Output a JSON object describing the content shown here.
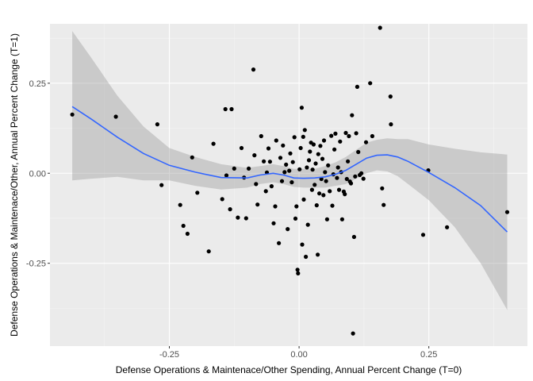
{
  "chart_data": {
    "type": "scatter",
    "title": "",
    "xlabel": "Defense Operations & Maintenace/Other Spending, Annual Percent Change (T=0)",
    "ylabel": "Defense Operations & Maintenace/Other, Annual Percent Change (T=1)",
    "xlim": [
      -0.48,
      0.44
    ],
    "ylim": [
      -0.48,
      0.415
    ],
    "x_ticks": [
      -0.25,
      0.0,
      0.25
    ],
    "x_tick_labels": [
      "-0.25",
      "0.00",
      "0.25"
    ],
    "y_ticks": [
      -0.25,
      0.0,
      0.25
    ],
    "y_tick_labels": [
      "-0.25",
      "0.00",
      "0.25"
    ],
    "grid": true,
    "colors": {
      "panel": "#ebebeb",
      "grid_major": "#ffffff",
      "grid_minor": "#f5f5f5",
      "points": "#000000",
      "smooth_line": "#3366ff",
      "ribbon": "#999999"
    },
    "points": [
      [
        -0.437,
        0.163
      ],
      [
        -0.353,
        0.157
      ],
      [
        -0.273,
        0.136
      ],
      [
        -0.265,
        -0.033
      ],
      [
        -0.229,
        -0.088
      ],
      [
        -0.223,
        -0.146
      ],
      [
        -0.215,
        -0.168
      ],
      [
        -0.206,
        0.044
      ],
      [
        -0.196,
        -0.054
      ],
      [
        -0.174,
        -0.217
      ],
      [
        -0.165,
        0.082
      ],
      [
        -0.148,
        -0.072
      ],
      [
        -0.142,
        0.178
      ],
      [
        -0.14,
        -0.006
      ],
      [
        -0.133,
        -0.1
      ],
      [
        -0.13,
        0.178
      ],
      [
        -0.125,
        0.013
      ],
      [
        -0.118,
        -0.123
      ],
      [
        -0.111,
        0.07
      ],
      [
        -0.106,
        -0.012
      ],
      [
        -0.102,
        -0.125
      ],
      [
        -0.097,
        0.013
      ],
      [
        -0.088,
        0.288
      ],
      [
        -0.086,
        0.05
      ],
      [
        -0.083,
        -0.03
      ],
      [
        -0.08,
        -0.087
      ],
      [
        -0.073,
        0.103
      ],
      [
        -0.068,
        0.033
      ],
      [
        -0.064,
        -0.05
      ],
      [
        -0.062,
        0.002
      ],
      [
        -0.059,
        0.069
      ],
      [
        -0.056,
        0.032
      ],
      [
        -0.053,
        -0.036
      ],
      [
        -0.049,
        -0.139
      ],
      [
        -0.046,
        -0.092
      ],
      [
        -0.044,
        0.091
      ],
      [
        -0.039,
        -0.194
      ],
      [
        -0.036,
        0.043
      ],
      [
        -0.033,
        -0.022
      ],
      [
        -0.031,
        0.077
      ],
      [
        -0.028,
        0.003
      ],
      [
        -0.025,
        0.024
      ],
      [
        -0.022,
        -0.155
      ],
      [
        -0.019,
        0.007
      ],
      [
        -0.017,
        0.055
      ],
      [
        -0.014,
        -0.025
      ],
      [
        -0.012,
        0.031
      ],
      [
        -0.009,
        0.1
      ],
      [
        -0.007,
        -0.126
      ],
      [
        -0.005,
        -0.092
      ],
      [
        -0.003,
        -0.268
      ],
      [
        -0.002,
        -0.278
      ],
      [
        0.001,
        0.011
      ],
      [
        0.003,
        0.07
      ],
      [
        0.005,
        0.182
      ],
      [
        0.006,
        -0.198
      ],
      [
        0.008,
        0.101
      ],
      [
        0.009,
        -0.073
      ],
      [
        0.011,
        0.12
      ],
      [
        0.013,
        -0.232
      ],
      [
        0.015,
        0.016
      ],
      [
        0.017,
        -0.143
      ],
      [
        0.019,
        0.036
      ],
      [
        0.021,
        0.06
      ],
      [
        0.023,
        0.085
      ],
      [
        0.025,
        -0.046
      ],
      [
        0.026,
        0.01
      ],
      [
        0.028,
        0.08
      ],
      [
        0.03,
        -0.032
      ],
      [
        0.032,
        0.027
      ],
      [
        0.034,
        -0.089
      ],
      [
        0.036,
        -0.226
      ],
      [
        0.037,
        0.053
      ],
      [
        0.039,
        -0.056
      ],
      [
        0.041,
        0.076
      ],
      [
        0.043,
        -0.016
      ],
      [
        0.045,
        0.04
      ],
      [
        0.047,
        -0.061
      ],
      [
        0.048,
        0.091
      ],
      [
        0.05,
        0.003
      ],
      [
        0.052,
        -0.022
      ],
      [
        0.054,
        -0.128
      ],
      [
        0.056,
        0.022
      ],
      [
        0.059,
        -0.05
      ],
      [
        0.062,
        0.104
      ],
      [
        0.064,
        -0.09
      ],
      [
        0.066,
        -0.003
      ],
      [
        0.068,
        0.066
      ],
      [
        0.07,
        0.11
      ],
      [
        0.073,
        -0.013
      ],
      [
        0.075,
        0.016
      ],
      [
        0.077,
        -0.046
      ],
      [
        0.079,
        0.088
      ],
      [
        0.081,
        0.003
      ],
      [
        0.083,
        -0.128
      ],
      [
        0.086,
        -0.051
      ],
      [
        0.088,
        -0.058
      ],
      [
        0.09,
        0.112
      ],
      [
        0.092,
        -0.016
      ],
      [
        0.094,
        0.033
      ],
      [
        0.096,
        0.103
      ],
      [
        0.098,
        -0.023
      ],
      [
        0.1,
        -0.028
      ],
      [
        0.102,
        0.161
      ],
      [
        0.104,
        -0.445
      ],
      [
        0.106,
        -0.177
      ],
      [
        0.108,
        -0.009
      ],
      [
        0.11,
        0.111
      ],
      [
        0.112,
        0.24
      ],
      [
        0.114,
        0.059
      ],
      [
        0.117,
        -0.005
      ],
      [
        0.12,
        0.0
      ],
      [
        0.124,
        -0.015
      ],
      [
        0.129,
        0.086
      ],
      [
        0.137,
        0.25
      ],
      [
        0.141,
        0.103
      ],
      [
        0.156,
        0.404
      ],
      [
        0.16,
        -0.042
      ],
      [
        0.163,
        -0.088
      ],
      [
        0.176,
        0.213
      ],
      [
        0.177,
        0.136
      ],
      [
        0.239,
        -0.171
      ],
      [
        0.249,
        0.008
      ],
      [
        0.285,
        -0.15
      ],
      [
        0.401,
        -0.108
      ]
    ],
    "smooth_line": {
      "x": [
        -0.437,
        -0.4,
        -0.35,
        -0.3,
        -0.25,
        -0.2,
        -0.15,
        -0.1,
        -0.075,
        -0.05,
        -0.03,
        -0.01,
        0.01,
        0.03,
        0.05,
        0.07,
        0.09,
        0.11,
        0.13,
        0.15,
        0.17,
        0.19,
        0.21,
        0.25,
        0.3,
        0.35,
        0.401
      ],
      "y": [
        0.185,
        0.15,
        0.1,
        0.055,
        0.022,
        0.003,
        -0.012,
        -0.013,
        -0.005,
        0.0,
        -0.005,
        -0.013,
        -0.014,
        -0.013,
        -0.01,
        -0.003,
        0.008,
        0.025,
        0.042,
        0.05,
        0.051,
        0.045,
        0.033,
        0.002,
        -0.04,
        -0.09,
        -0.163
      ],
      "lower": [
        -0.02,
        -0.015,
        -0.01,
        -0.02,
        -0.02,
        -0.035,
        -0.045,
        -0.04,
        -0.03,
        -0.025,
        -0.03,
        -0.038,
        -0.04,
        -0.04,
        -0.04,
        -0.035,
        -0.03,
        -0.015,
        0.0,
        0.008,
        0.005,
        -0.008,
        -0.03,
        -0.075,
        -0.15,
        -0.25,
        -0.38
      ],
      "upper": [
        0.395,
        0.32,
        0.215,
        0.13,
        0.07,
        0.045,
        0.025,
        0.015,
        0.02,
        0.025,
        0.02,
        0.012,
        0.012,
        0.012,
        0.02,
        0.03,
        0.045,
        0.065,
        0.085,
        0.093,
        0.097,
        0.095,
        0.095,
        0.08,
        0.068,
        0.058,
        0.052
      ]
    }
  }
}
